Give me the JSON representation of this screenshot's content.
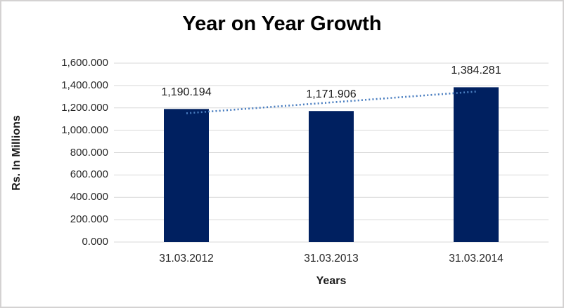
{
  "window": {
    "background": "#ffffff",
    "border_color": "#d4d2d2"
  },
  "chart_data": {
    "type": "bar",
    "title": "Year on Year Growth",
    "xlabel": "Years",
    "ylabel": "Rs. In Millions",
    "categories": [
      "31.03.2012",
      "31.03.2013",
      "31.03.2014"
    ],
    "values": [
      1190.194,
      1171.906,
      1384.281
    ],
    "data_labels": [
      "1,190.194",
      "1,171.906",
      "1,384.281"
    ],
    "ylim": [
      0,
      1600
    ],
    "ytick_values": [
      0,
      200,
      400,
      600,
      800,
      1000,
      1200,
      1400,
      1600
    ],
    "ytick_labels": [
      "0.000",
      "200.000",
      "400.000",
      "600.000",
      "800.000",
      "1,000.000",
      "1,200.000",
      "1,400.000",
      "1,600.000"
    ],
    "grid": true,
    "legend_position": "none",
    "trendline": {
      "type": "linear",
      "line_style": "dotted"
    },
    "colors": {
      "bar": "#002060",
      "trendline": "#4a7ec0",
      "gridline": "#d9d9d9",
      "title_text": "#000000",
      "axis_text": "#262626",
      "data_label_text": "#1a1a1a"
    }
  }
}
